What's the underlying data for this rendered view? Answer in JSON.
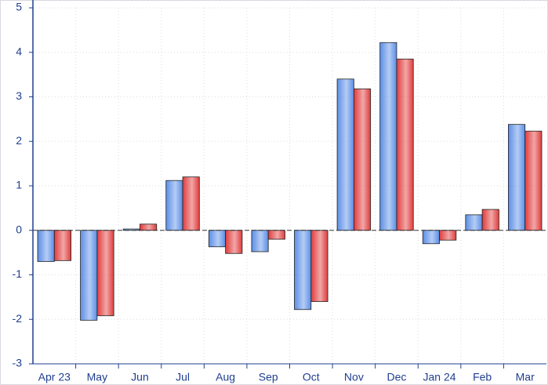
{
  "chart_data": {
    "type": "bar",
    "categories": [
      "Apr 23",
      "May",
      "Jun",
      "Jul",
      "Aug",
      "Sep",
      "Oct",
      "Nov",
      "Dec",
      "Jan 24",
      "Feb",
      "Mar"
    ],
    "series": [
      {
        "color": "#5b8ee6",
        "values": [
          -0.7,
          -2.02,
          0.03,
          1.12,
          -0.37,
          -0.48,
          -1.78,
          3.4,
          4.22,
          -0.3,
          0.35,
          2.38
        ]
      },
      {
        "color": "#e03c3c",
        "values": [
          -0.68,
          -1.92,
          0.14,
          1.2,
          -0.52,
          -0.2,
          -1.6,
          3.18,
          3.85,
          -0.22,
          0.47,
          2.23
        ]
      }
    ],
    "ylim": [
      -3,
      5
    ],
    "yticks": [
      -3,
      -2,
      -1,
      0,
      1,
      2,
      3,
      4,
      5
    ],
    "grid": true
  }
}
